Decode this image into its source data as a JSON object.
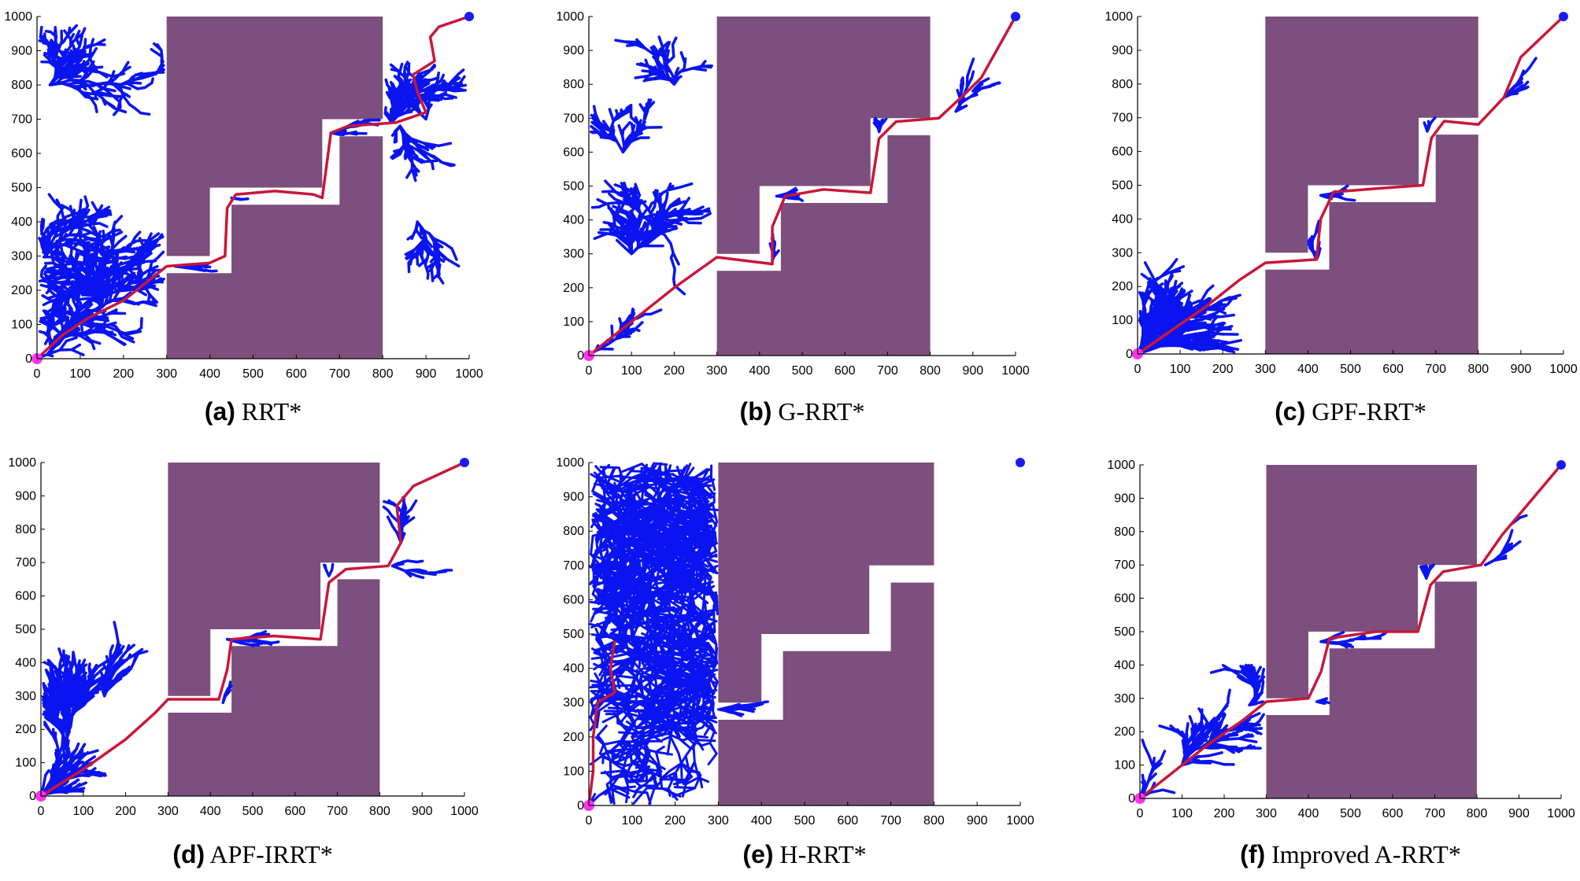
{
  "colors": {
    "obstacle": "#7c4f7e",
    "tree": "#0a14f0",
    "path": "#c8173a",
    "start": "#ff33ee",
    "goal": "#1a1af5"
  },
  "chart_data": [
    {
      "type": "scatter",
      "caption_letter": "(a)",
      "caption": "RRT*",
      "xlim": [
        0,
        1000
      ],
      "ylim": [
        0,
        1000
      ],
      "xticks": [
        0,
        100,
        200,
        300,
        400,
        500,
        600,
        700,
        800,
        900,
        1000
      ],
      "yticks": [
        0,
        100,
        200,
        300,
        400,
        500,
        600,
        700,
        800,
        900,
        1000
      ],
      "obstacle": "full",
      "start": [
        0,
        0
      ],
      "goal": [
        1000,
        1000
      ],
      "tree_density": "dense-left-and-right",
      "path": [
        [
          0,
          0
        ],
        [
          60,
          70
        ],
        [
          120,
          120
        ],
        [
          200,
          170
        ],
        [
          260,
          230
        ],
        [
          300,
          270
        ],
        [
          400,
          280
        ],
        [
          435,
          300
        ],
        [
          440,
          440
        ],
        [
          460,
          480
        ],
        [
          550,
          490
        ],
        [
          640,
          480
        ],
        [
          660,
          470
        ],
        [
          680,
          660
        ],
        [
          720,
          680
        ],
        [
          830,
          690
        ],
        [
          900,
          720
        ],
        [
          880,
          780
        ],
        [
          870,
          830
        ],
        [
          920,
          870
        ],
        [
          910,
          940
        ],
        [
          930,
          970
        ],
        [
          1000,
          1000
        ]
      ]
    },
    {
      "type": "scatter",
      "caption_letter": "(b)",
      "caption": "G-RRT*",
      "xlim": [
        0,
        1000
      ],
      "ylim": [
        0,
        1000
      ],
      "xticks": [
        0,
        100,
        200,
        300,
        400,
        500,
        600,
        700,
        800,
        900,
        1000
      ],
      "yticks": [
        0,
        100,
        200,
        300,
        400,
        500,
        600,
        700,
        800,
        900,
        1000
      ],
      "obstacle": "full",
      "start": [
        0,
        0
      ],
      "goal": [
        1000,
        1000
      ],
      "tree_density": "medium-left",
      "path": [
        [
          0,
          0
        ],
        [
          100,
          100
        ],
        [
          200,
          200
        ],
        [
          300,
          290
        ],
        [
          430,
          270
        ],
        [
          430,
          380
        ],
        [
          460,
          470
        ],
        [
          550,
          490
        ],
        [
          660,
          480
        ],
        [
          680,
          640
        ],
        [
          720,
          690
        ],
        [
          820,
          700
        ],
        [
          880,
          770
        ],
        [
          920,
          820
        ],
        [
          1000,
          1000
        ]
      ]
    },
    {
      "type": "scatter",
      "caption_letter": "(c)",
      "caption": "GPF-RRT*",
      "xlim": [
        0,
        1000
      ],
      "ylim": [
        0,
        1000
      ],
      "xticks": [
        0,
        100,
        200,
        300,
        400,
        500,
        600,
        700,
        800,
        900,
        1000
      ],
      "yticks": [
        0,
        100,
        200,
        300,
        400,
        500,
        600,
        700,
        800,
        900,
        1000
      ],
      "obstacle": "full",
      "start": [
        0,
        0
      ],
      "goal": [
        1000,
        1000
      ],
      "tree_density": "focused-diagonal",
      "path": [
        [
          0,
          0
        ],
        [
          80,
          70
        ],
        [
          160,
          140
        ],
        [
          240,
          220
        ],
        [
          300,
          270
        ],
        [
          420,
          280
        ],
        [
          430,
          400
        ],
        [
          460,
          480
        ],
        [
          560,
          490
        ],
        [
          670,
          500
        ],
        [
          690,
          640
        ],
        [
          720,
          690
        ],
        [
          800,
          680
        ],
        [
          860,
          760
        ],
        [
          900,
          880
        ],
        [
          1000,
          1000
        ]
      ]
    },
    {
      "type": "scatter",
      "caption_letter": "(d)",
      "caption": "APF-IRRT*",
      "xlim": [
        0,
        1000
      ],
      "ylim": [
        0,
        1000
      ],
      "xticks": [
        0,
        100,
        200,
        300,
        400,
        500,
        600,
        700,
        800,
        900,
        1000
      ],
      "yticks": [
        0,
        100,
        200,
        300,
        400,
        500,
        600,
        700,
        800,
        900,
        1000
      ],
      "obstacle": "full",
      "start": [
        0,
        0
      ],
      "goal": [
        1000,
        1000
      ],
      "tree_density": "fan-left",
      "path": [
        [
          0,
          0
        ],
        [
          100,
          80
        ],
        [
          200,
          170
        ],
        [
          270,
          250
        ],
        [
          300,
          290
        ],
        [
          420,
          290
        ],
        [
          440,
          380
        ],
        [
          450,
          470
        ],
        [
          550,
          480
        ],
        [
          660,
          470
        ],
        [
          680,
          640
        ],
        [
          720,
          680
        ],
        [
          820,
          690
        ],
        [
          850,
          760
        ],
        [
          840,
          870
        ],
        [
          880,
          930
        ],
        [
          1000,
          1000
        ]
      ]
    },
    {
      "type": "scatter",
      "caption_letter": "(e)",
      "caption": "H-RRT*",
      "xlim": [
        0,
        1000
      ],
      "ylim": [
        0,
        1000
      ],
      "xticks": [
        0,
        100,
        200,
        300,
        400,
        500,
        600,
        700,
        800,
        900,
        1000
      ],
      "yticks": [
        0,
        100,
        200,
        300,
        400,
        500,
        600,
        700,
        800,
        900,
        1000
      ],
      "obstacle": "partial",
      "start": [
        0,
        0
      ],
      "goal": [
        1000,
        1000
      ],
      "tree_density": "very-dense-left",
      "path": [
        [
          0,
          0
        ],
        [
          10,
          100
        ],
        [
          10,
          200
        ],
        [
          20,
          300
        ],
        [
          60,
          330
        ],
        [
          50,
          400
        ],
        [
          60,
          480
        ]
      ]
    },
    {
      "type": "scatter",
      "caption_letter": "(f)",
      "caption": "Improved A-RRT*",
      "xlim": [
        0,
        1000
      ],
      "ylim": [
        0,
        1000
      ],
      "xticks": [
        0,
        100,
        200,
        300,
        400,
        500,
        600,
        700,
        800,
        900,
        1000
      ],
      "yticks": [
        0,
        100,
        200,
        300,
        400,
        500,
        600,
        700,
        800,
        900,
        1000
      ],
      "obstacle": "full",
      "start": [
        0,
        0
      ],
      "goal": [
        1000,
        1000
      ],
      "tree_density": "sparse-diagonal",
      "path": [
        [
          0,
          0
        ],
        [
          80,
          80
        ],
        [
          160,
          160
        ],
        [
          240,
          230
        ],
        [
          300,
          290
        ],
        [
          400,
          300
        ],
        [
          430,
          380
        ],
        [
          450,
          480
        ],
        [
          560,
          500
        ],
        [
          660,
          500
        ],
        [
          690,
          640
        ],
        [
          720,
          680
        ],
        [
          810,
          700
        ],
        [
          860,
          790
        ],
        [
          920,
          880
        ],
        [
          1000,
          1000
        ]
      ]
    }
  ]
}
